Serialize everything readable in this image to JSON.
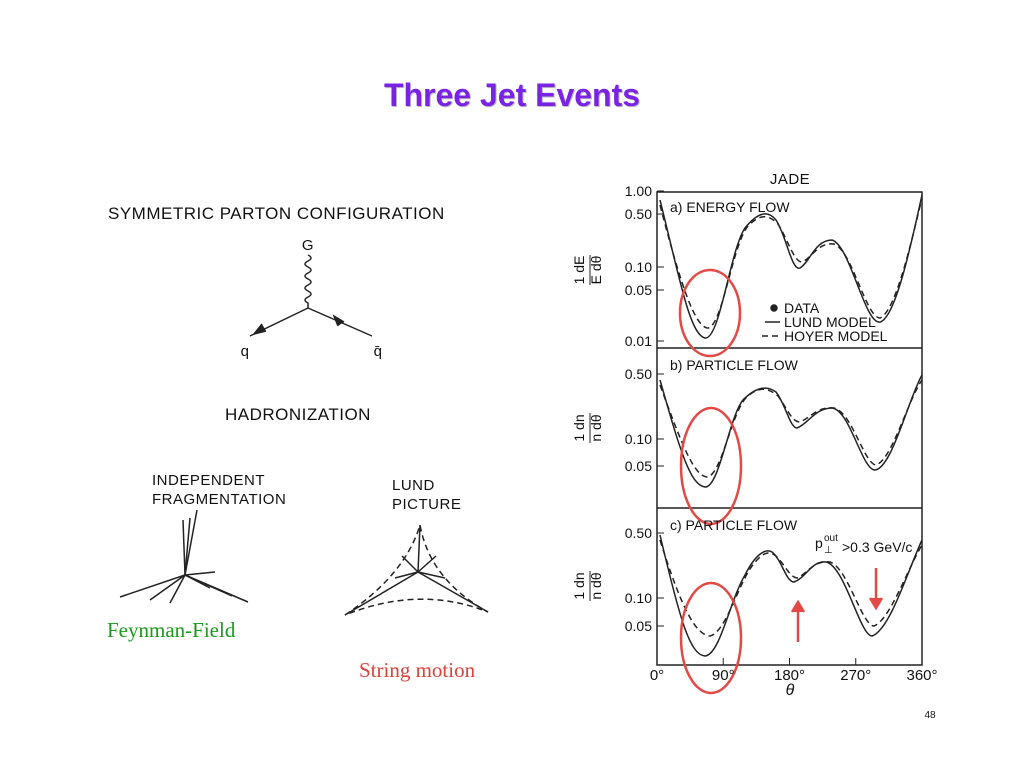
{
  "slide": {
    "title": "Three Jet Events",
    "page_number": "48"
  },
  "left_figure": {
    "heading": "SYMMETRIC PARTON CONFIGURATION",
    "gluon": "G",
    "quark": "q",
    "antiquark": "q̄",
    "section": "HADRONIZATION",
    "independent": [
      "INDEPENDENT",
      "FRAGMENTATION"
    ],
    "lund": [
      "LUND",
      "PICTURE"
    ]
  },
  "annotations": {
    "feynman_field": "Feynman-Field",
    "string_motion": "String motion"
  },
  "right_figure": {
    "title": "JADE",
    "panels": [
      {
        "label": "a) ENERGY FLOW",
        "y_label": [
          "1 dE",
          "E dθ"
        ],
        "yticks": [
          "1.00",
          "0.50",
          "0.10",
          "0.05",
          "0.01"
        ]
      },
      {
        "label": "b) PARTICLE FLOW",
        "y_label": [
          "1 dn",
          "n dθ"
        ],
        "yticks": [
          "0.50",
          "0.10",
          "0.05"
        ]
      },
      {
        "label": "c) PARTICLE FLOW",
        "y_label": [
          "1 dn",
          "n dθ"
        ],
        "yticks": [
          "0.50",
          "0.10",
          "0.05"
        ]
      }
    ],
    "legend": [
      "DATA",
      "LUND MODEL",
      "HOYER MODEL"
    ],
    "cut_label": [
      "p",
      "out",
      "⊥",
      ">0.3 GeV/c"
    ],
    "xticks": [
      "0°",
      "90°",
      "180°",
      "270°",
      "360°"
    ],
    "x_label": "θ"
  }
}
